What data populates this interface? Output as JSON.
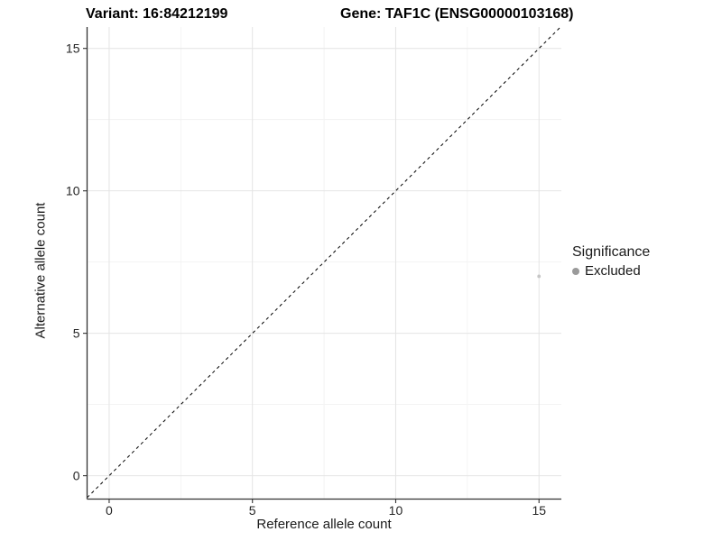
{
  "chart_data": {
    "type": "scatter",
    "title_left": "Variant: 16:84212199",
    "title_right": "Gene: TAF1C (ENSG00000103168)",
    "xlabel": "Reference allele count",
    "ylabel": "Alternative allele count",
    "xlim": [
      -0.77,
      15.78
    ],
    "ylim": [
      -0.82,
      15.75
    ],
    "x_ticks": [
      0,
      5,
      10,
      15
    ],
    "y_ticks": [
      0,
      5,
      10,
      15
    ],
    "x_minor_ticks": [
      2.5,
      7.5,
      12.5
    ],
    "y_minor_ticks": [
      2.5,
      7.5,
      12.5
    ],
    "grid": true,
    "points": [
      {
        "x": 15,
        "y": 7,
        "series": "Excluded"
      }
    ],
    "abline": {
      "slope": 1,
      "intercept": 0,
      "style": "dashed",
      "color": "#000000"
    },
    "legend": {
      "title": "Significance",
      "position": "right",
      "entries": [
        {
          "label": "Excluded",
          "color": "#9a9a9a"
        }
      ]
    },
    "colors": {
      "point": "#c6c6c6",
      "axis_line": "#333333",
      "tick_label": "#262626",
      "grid_major": "#e4e4e4",
      "grid_minor": "#f1f1f1",
      "background": "#ffffff"
    }
  }
}
